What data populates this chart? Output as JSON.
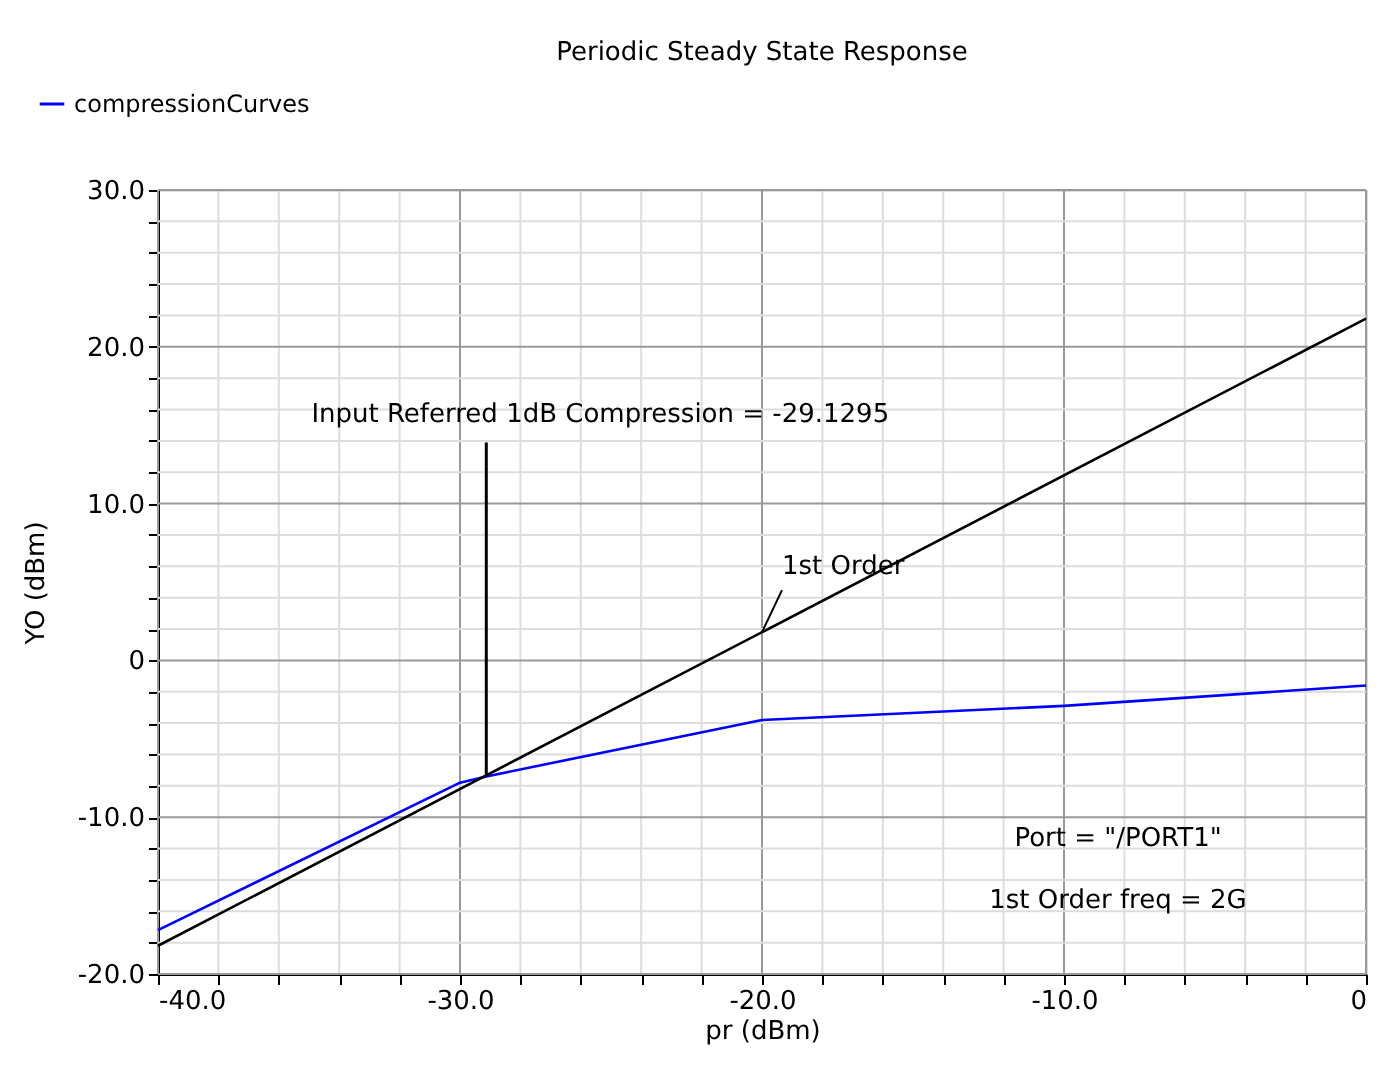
{
  "chart_data": {
    "type": "line",
    "title": "Periodic Steady State Response",
    "xlabel": "pr (dBm)",
    "ylabel": "YO (dBm)",
    "x": [
      -40,
      -30,
      -29.1295,
      -20,
      -10,
      0
    ],
    "series": [
      {
        "name": "compressionCurves",
        "color": "#0000ff",
        "values": [
          -17.2,
          -7.8,
          -7.4,
          -3.8,
          -2.9,
          -1.6
        ]
      },
      {
        "color": "#000000",
        "x": [
          -40,
          0
        ],
        "values": [
          -18.2,
          21.8
        ]
      }
    ],
    "annotations": [
      {
        "text": "Input Referred 1dB Compression = -29.1295",
        "x": -29.1295,
        "y": -7.4
      },
      {
        "text": "1st Order",
        "x": -20,
        "y": 1.8
      },
      "Port = \"/PORT1\"",
      "1st Order freq = 2G"
    ],
    "xlim": [
      -40,
      0
    ],
    "ylim": [
      -20,
      30
    ],
    "xticks": [
      {
        "value": -40,
        "label": "-40.0"
      },
      {
        "value": -38,
        "label": null
      },
      {
        "value": -36,
        "label": null
      },
      {
        "value": -34,
        "label": null
      },
      {
        "value": -32,
        "label": null
      },
      {
        "value": -30,
        "label": "-30.0"
      },
      {
        "value": -28,
        "label": null
      },
      {
        "value": -26,
        "label": null
      },
      {
        "value": -24,
        "label": null
      },
      {
        "value": -22,
        "label": null
      },
      {
        "value": -20,
        "label": "-20.0"
      },
      {
        "value": -18,
        "label": null
      },
      {
        "value": -16,
        "label": null
      },
      {
        "value": -14,
        "label": null
      },
      {
        "value": -12,
        "label": null
      },
      {
        "value": -10,
        "label": "-10.0"
      },
      {
        "value": -8,
        "label": null
      },
      {
        "value": -6,
        "label": null
      },
      {
        "value": -4,
        "label": null
      },
      {
        "value": -2,
        "label": null
      },
      0
    ],
    "yticks": [
      {
        "value": -20,
        "label": "-20.0"
      },
      {
        "value": -18,
        "label": null
      },
      {
        "value": -16,
        "label": null
      },
      {
        "value": -14,
        "label": null
      },
      {
        "value": -12,
        "label": null
      },
      {
        "value": -10,
        "label": "-10.0"
      },
      {
        "value": -8,
        "label": null
      },
      {
        "value": -6,
        "label": null
      },
      {
        "value": -4,
        "label": null
      },
      {
        "value": -2,
        "label": null
      },
      0,
      {
        "value": 2,
        "label": null
      },
      {
        "value": 4,
        "label": null
      },
      {
        "value": 6,
        "label": null
      },
      {
        "value": 8,
        "label": null
      },
      {
        "value": 10,
        "label": "10.0"
      },
      {
        "value": 12,
        "label": null
      },
      {
        "value": 14,
        "label": null
      },
      {
        "value": 16,
        "label": null
      },
      {
        "value": 18,
        "label": null
      },
      {
        "value": 20,
        "label": "20.0"
      },
      {
        "value": 22,
        "label": null
      },
      {
        "value": 24,
        "label": null
      },
      {
        "value": 26,
        "label": null
      },
      {
        "value": 28,
        "label": null
      },
      {
        "value": 30,
        "label": "30.0"
      }
    ],
    "grid": true,
    "legend": "top left",
    "marker": "none",
    "line_style": "solid"
  }
}
